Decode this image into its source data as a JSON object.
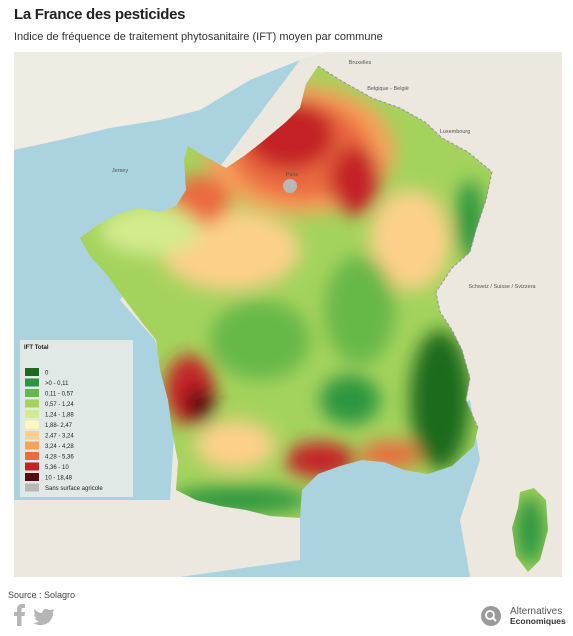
{
  "header": {
    "title": "La France des pesticides",
    "subtitle": "Indice de fréquence de traitement phytosanitaire (IFT) moyen par commune"
  },
  "map": {
    "place_labels": [
      "Bruxelles",
      "Belgique - België",
      "Luxembourg",
      "Schweiz / Suisse / Svizzera",
      "Paris",
      "Jersey"
    ]
  },
  "legend": {
    "title": "IFT Total",
    "items": [
      {
        "label": "0",
        "color": "#1b6a1f"
      },
      {
        "label": ">0 - 0,11",
        "color": "#2f9640"
      },
      {
        "label": "0,11 - 0,57",
        "color": "#67b84a"
      },
      {
        "label": "0,57 - 1,24",
        "color": "#a4d35d"
      },
      {
        "label": "1,24 - 1,88",
        "color": "#d3eb8d"
      },
      {
        "label": "1,88- 2,47",
        "color": "#fcf9b6"
      },
      {
        "label": "2,47 - 3,24",
        "color": "#fcd08a"
      },
      {
        "label": "3,24 - 4,28",
        "color": "#f6a25b"
      },
      {
        "label": "4,28 - 5,36",
        "color": "#ea6b3f"
      },
      {
        "label": "5,36 - 10",
        "color": "#c42128"
      },
      {
        "label": "10 - 18,48",
        "color": "#580b0f"
      },
      {
        "label": "Sans surface agricole",
        "color": "#b8b8b8"
      }
    ]
  },
  "footer": {
    "source": "Source : Solagro",
    "brand_line1": "Alternatives",
    "brand_line2": "Economiques"
  }
}
